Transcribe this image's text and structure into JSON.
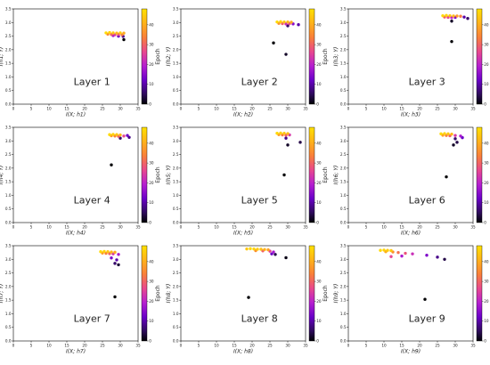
{
  "chart_data": [
    {
      "type": "scatter",
      "annotation": "Layer 1",
      "xlabel": "I(X; h1)",
      "ylabel": "I(h1; Y)",
      "xlim": [
        0,
        35
      ],
      "ylim": [
        0,
        3.5
      ],
      "xticks": [
        "0",
        "5",
        "10",
        "15",
        "20",
        "25",
        "30",
        "35"
      ],
      "yticks": [
        "0.0",
        "0.5",
        "1.0",
        "1.5",
        "2.0",
        "2.5",
        "3.0",
        "3.5"
      ],
      "colorbar": {
        "label": "Epoch",
        "range": [
          0,
          48
        ],
        "ticks": [
          "0",
          "10",
          "20",
          "30",
          "40"
        ]
      },
      "points": [
        {
          "x": 26.0,
          "y": 2.62,
          "epoch": 47
        },
        {
          "x": 27.0,
          "y": 2.63,
          "epoch": 46
        },
        {
          "x": 28.0,
          "y": 2.62,
          "epoch": 44
        },
        {
          "x": 29.0,
          "y": 2.61,
          "epoch": 42
        },
        {
          "x": 30.0,
          "y": 2.62,
          "epoch": 45
        },
        {
          "x": 31.0,
          "y": 2.61,
          "epoch": 40
        },
        {
          "x": 26.5,
          "y": 2.57,
          "epoch": 35
        },
        {
          "x": 27.5,
          "y": 2.56,
          "epoch": 30
        },
        {
          "x": 28.5,
          "y": 2.55,
          "epoch": 25
        },
        {
          "x": 29.5,
          "y": 2.56,
          "epoch": 28
        },
        {
          "x": 30.5,
          "y": 2.55,
          "epoch": 33
        },
        {
          "x": 28.0,
          "y": 2.52,
          "epoch": 18
        },
        {
          "x": 29.5,
          "y": 2.5,
          "epoch": 12
        },
        {
          "x": 30.8,
          "y": 2.49,
          "epoch": 8
        },
        {
          "x": 31.0,
          "y": 2.37,
          "epoch": 0
        }
      ]
    },
    {
      "type": "scatter",
      "annotation": "Layer 2",
      "xlabel": "I(X; h2)",
      "ylabel": "I(h2; Y)",
      "xlim": [
        0,
        35
      ],
      "ylim": [
        0,
        3.5
      ],
      "xticks": [
        "0",
        "5",
        "10",
        "15",
        "20",
        "25",
        "30",
        "35"
      ],
      "yticks": [
        "0.0",
        "0.5",
        "1.0",
        "1.5",
        "2.0",
        "2.5",
        "3.0",
        "3.5"
      ],
      "colorbar": {
        "label": "Epoch",
        "range": [
          0,
          48
        ],
        "ticks": [
          "0",
          "10",
          "20",
          "30",
          "40"
        ]
      },
      "points": [
        {
          "x": 27.0,
          "y": 3.02,
          "epoch": 47
        },
        {
          "x": 28.0,
          "y": 3.03,
          "epoch": 46
        },
        {
          "x": 29.0,
          "y": 3.02,
          "epoch": 44
        },
        {
          "x": 30.0,
          "y": 3.02,
          "epoch": 42
        },
        {
          "x": 31.0,
          "y": 3.01,
          "epoch": 40
        },
        {
          "x": 27.5,
          "y": 2.97,
          "epoch": 36
        },
        {
          "x": 28.5,
          "y": 2.96,
          "epoch": 30
        },
        {
          "x": 29.5,
          "y": 2.95,
          "epoch": 22
        },
        {
          "x": 30.5,
          "y": 2.96,
          "epoch": 27
        },
        {
          "x": 31.5,
          "y": 2.95,
          "epoch": 15
        },
        {
          "x": 33.0,
          "y": 2.92,
          "epoch": 10
        },
        {
          "x": 30.0,
          "y": 2.88,
          "epoch": 6
        },
        {
          "x": 29.5,
          "y": 1.83,
          "epoch": 2
        },
        {
          "x": 26.0,
          "y": 2.25,
          "epoch": 0
        }
      ]
    },
    {
      "type": "scatter",
      "annotation": "Layer 3",
      "xlabel": "I(X; h3)",
      "ylabel": "I(h3; Y)",
      "xlim": [
        0,
        35
      ],
      "ylim": [
        0,
        3.5
      ],
      "xticks": [
        "0",
        "5",
        "10",
        "15",
        "20",
        "25",
        "30",
        "35"
      ],
      "yticks": [
        "0.0",
        "0.5",
        "1.0",
        "1.5",
        "2.0",
        "2.5",
        "3.0",
        "3.5"
      ],
      "colorbar": {
        "label": "Epoch",
        "range": [
          0,
          48
        ],
        "ticks": [
          "0",
          "10",
          "20",
          "30",
          "40"
        ]
      },
      "points": [
        {
          "x": 26.5,
          "y": 3.25,
          "epoch": 47
        },
        {
          "x": 27.5,
          "y": 3.26,
          "epoch": 46
        },
        {
          "x": 28.5,
          "y": 3.25,
          "epoch": 44
        },
        {
          "x": 29.5,
          "y": 3.24,
          "epoch": 42
        },
        {
          "x": 30.5,
          "y": 3.24,
          "epoch": 38
        },
        {
          "x": 31.5,
          "y": 3.23,
          "epoch": 33
        },
        {
          "x": 27.0,
          "y": 3.2,
          "epoch": 30
        },
        {
          "x": 28.0,
          "y": 3.19,
          "epoch": 26
        },
        {
          "x": 29.0,
          "y": 3.18,
          "epoch": 20
        },
        {
          "x": 30.0,
          "y": 3.19,
          "epoch": 14
        },
        {
          "x": 32.5,
          "y": 3.2,
          "epoch": 10
        },
        {
          "x": 33.5,
          "y": 3.15,
          "epoch": 6
        },
        {
          "x": 29.0,
          "y": 3.05,
          "epoch": 2
        },
        {
          "x": 29.0,
          "y": 2.3,
          "epoch": 0
        }
      ]
    },
    {
      "type": "scatter",
      "annotation": "Layer 4",
      "xlabel": "I(X; h4)",
      "ylabel": "I(h4; Y)",
      "xlim": [
        0,
        35
      ],
      "ylim": [
        0,
        3.5
      ],
      "xticks": [
        "0",
        "5",
        "10",
        "15",
        "20",
        "25",
        "30",
        "35"
      ],
      "yticks": [
        "0.0",
        "0.5",
        "1.0",
        "1.5",
        "2.0",
        "2.5",
        "3.0",
        "3.5"
      ],
      "colorbar": {
        "label": "Epoch",
        "range": [
          0,
          48
        ],
        "ticks": [
          "0",
          "10",
          "20",
          "30",
          "40"
        ]
      },
      "points": [
        {
          "x": 27.0,
          "y": 3.23,
          "epoch": 47
        },
        {
          "x": 28.0,
          "y": 3.24,
          "epoch": 46
        },
        {
          "x": 29.0,
          "y": 3.23,
          "epoch": 44
        },
        {
          "x": 30.0,
          "y": 3.22,
          "epoch": 42
        },
        {
          "x": 27.5,
          "y": 3.19,
          "epoch": 38
        },
        {
          "x": 28.5,
          "y": 3.18,
          "epoch": 34
        },
        {
          "x": 29.5,
          "y": 3.17,
          "epoch": 30
        },
        {
          "x": 31.0,
          "y": 3.18,
          "epoch": 26
        },
        {
          "x": 32.0,
          "y": 3.2,
          "epoch": 12
        },
        {
          "x": 30.0,
          "y": 3.1,
          "epoch": 6
        },
        {
          "x": 32.5,
          "y": 3.13,
          "epoch": 8
        },
        {
          "x": 27.5,
          "y": 2.12,
          "epoch": 0
        }
      ]
    },
    {
      "type": "scatter",
      "annotation": "Layer 5",
      "xlabel": "I(X; h5)",
      "ylabel": "I(h5; Y)",
      "xlim": [
        0,
        35
      ],
      "ylim": [
        0,
        3.5
      ],
      "xticks": [
        "0",
        "5",
        "10",
        "15",
        "20",
        "25",
        "30",
        "35"
      ],
      "yticks": [
        "0.0",
        "0.5",
        "1.0",
        "1.5",
        "2.0",
        "2.5",
        "3.0",
        "3.5"
      ],
      "colorbar": {
        "label": "Epoch",
        "range": [
          0,
          48
        ],
        "ticks": [
          "0",
          "10",
          "20",
          "30",
          "40"
        ]
      },
      "points": [
        {
          "x": 27.0,
          "y": 3.28,
          "epoch": 47
        },
        {
          "x": 28.0,
          "y": 3.29,
          "epoch": 46
        },
        {
          "x": 29.0,
          "y": 3.28,
          "epoch": 44
        },
        {
          "x": 30.0,
          "y": 3.27,
          "epoch": 42
        },
        {
          "x": 27.5,
          "y": 3.23,
          "epoch": 38
        },
        {
          "x": 28.5,
          "y": 3.22,
          "epoch": 34
        },
        {
          "x": 29.5,
          "y": 3.21,
          "epoch": 30
        },
        {
          "x": 30.5,
          "y": 3.22,
          "epoch": 24
        },
        {
          "x": 29.5,
          "y": 3.1,
          "epoch": 8
        },
        {
          "x": 33.5,
          "y": 2.95,
          "epoch": 4
        },
        {
          "x": 30.0,
          "y": 2.85,
          "epoch": 2
        },
        {
          "x": 29.0,
          "y": 1.75,
          "epoch": 0
        }
      ]
    },
    {
      "type": "scatter",
      "annotation": "Layer 6",
      "xlabel": "I(X; h6)",
      "ylabel": "I(h6; Y)",
      "xlim": [
        0,
        35
      ],
      "ylim": [
        0,
        3.5
      ],
      "xticks": [
        "0",
        "5",
        "10",
        "15",
        "20",
        "25",
        "30",
        "35"
      ],
      "yticks": [
        "0.0",
        "0.5",
        "1.0",
        "1.5",
        "2.0",
        "2.5",
        "3.0",
        "3.5"
      ],
      "colorbar": {
        "label": "Epoch",
        "range": [
          0,
          48
        ],
        "ticks": [
          "0",
          "10",
          "20",
          "30",
          "40"
        ]
      },
      "points": [
        {
          "x": 26.0,
          "y": 3.26,
          "epoch": 47
        },
        {
          "x": 27.0,
          "y": 3.27,
          "epoch": 46
        },
        {
          "x": 28.0,
          "y": 3.26,
          "epoch": 44
        },
        {
          "x": 29.0,
          "y": 3.25,
          "epoch": 42
        },
        {
          "x": 26.5,
          "y": 3.21,
          "epoch": 38
        },
        {
          "x": 27.5,
          "y": 3.2,
          "epoch": 34
        },
        {
          "x": 28.5,
          "y": 3.19,
          "epoch": 30
        },
        {
          "x": 30.0,
          "y": 3.2,
          "epoch": 24
        },
        {
          "x": 31.5,
          "y": 3.18,
          "epoch": 18
        },
        {
          "x": 32.0,
          "y": 3.12,
          "epoch": 12
        },
        {
          "x": 30.0,
          "y": 3.08,
          "epoch": 6
        },
        {
          "x": 30.5,
          "y": 2.95,
          "epoch": 4
        },
        {
          "x": 29.5,
          "y": 2.85,
          "epoch": 2
        },
        {
          "x": 27.5,
          "y": 1.68,
          "epoch": 0
        }
      ]
    },
    {
      "type": "scatter",
      "annotation": "Layer 7",
      "xlabel": "I(X; h7)",
      "ylabel": "I(h7; Y)",
      "xlim": [
        0,
        35
      ],
      "ylim": [
        0,
        3.5
      ],
      "xticks": [
        "0",
        "5",
        "10",
        "15",
        "20",
        "25",
        "30",
        "35"
      ],
      "yticks": [
        "0.0",
        "0.5",
        "1.0",
        "1.5",
        "2.0",
        "2.5",
        "3.0",
        "3.5"
      ],
      "colorbar": {
        "label": "Epoch",
        "range": [
          0,
          48
        ],
        "ticks": [
          "0",
          "10",
          "20",
          "30",
          "40"
        ]
      },
      "points": [
        {
          "x": 24.5,
          "y": 3.28,
          "epoch": 47
        },
        {
          "x": 25.5,
          "y": 3.29,
          "epoch": 46
        },
        {
          "x": 26.5,
          "y": 3.28,
          "epoch": 44
        },
        {
          "x": 27.5,
          "y": 3.27,
          "epoch": 42
        },
        {
          "x": 28.5,
          "y": 3.26,
          "epoch": 40
        },
        {
          "x": 25.0,
          "y": 3.23,
          "epoch": 38
        },
        {
          "x": 26.0,
          "y": 3.22,
          "epoch": 34
        },
        {
          "x": 27.0,
          "y": 3.21,
          "epoch": 30
        },
        {
          "x": 28.0,
          "y": 3.2,
          "epoch": 24
        },
        {
          "x": 29.5,
          "y": 3.18,
          "epoch": 18
        },
        {
          "x": 27.5,
          "y": 3.05,
          "epoch": 14
        },
        {
          "x": 29.0,
          "y": 2.98,
          "epoch": 10
        },
        {
          "x": 28.5,
          "y": 2.85,
          "epoch": 6
        },
        {
          "x": 29.5,
          "y": 2.8,
          "epoch": 3
        },
        {
          "x": 28.5,
          "y": 1.62,
          "epoch": 0
        }
      ]
    },
    {
      "type": "scatter",
      "annotation": "Layer 8",
      "xlabel": "I(X; h8)",
      "ylabel": "I(h8; Y)",
      "xlim": [
        0,
        35
      ],
      "ylim": [
        0,
        3.5
      ],
      "xticks": [
        "0",
        "5",
        "10",
        "15",
        "20",
        "25",
        "30",
        "35"
      ],
      "yticks": [
        "0.0",
        "0.5",
        "1.0",
        "1.5",
        "2.0",
        "2.5",
        "3.0",
        "3.5"
      ],
      "colorbar": {
        "label": "Epoch",
        "range": [
          0,
          48
        ],
        "ticks": [
          "0",
          "10",
          "20",
          "30",
          "40"
        ]
      },
      "points": [
        {
          "x": 18.5,
          "y": 3.38,
          "epoch": 44
        },
        {
          "x": 19.5,
          "y": 3.39,
          "epoch": 47
        },
        {
          "x": 20.5,
          "y": 3.38,
          "epoch": 46
        },
        {
          "x": 21.5,
          "y": 3.37,
          "epoch": 45
        },
        {
          "x": 22.5,
          "y": 3.37,
          "epoch": 43
        },
        {
          "x": 23.5,
          "y": 3.36,
          "epoch": 41
        },
        {
          "x": 24.5,
          "y": 3.35,
          "epoch": 39
        },
        {
          "x": 21.0,
          "y": 3.32,
          "epoch": 36
        },
        {
          "x": 23.0,
          "y": 3.31,
          "epoch": 30
        },
        {
          "x": 25.0,
          "y": 3.3,
          "epoch": 26
        },
        {
          "x": 26.0,
          "y": 3.27,
          "epoch": 18
        },
        {
          "x": 25.5,
          "y": 3.2,
          "epoch": 12
        },
        {
          "x": 26.5,
          "y": 3.18,
          "epoch": 4
        },
        {
          "x": 29.5,
          "y": 3.06,
          "epoch": 1
        },
        {
          "x": 19.0,
          "y": 1.6,
          "epoch": 0
        }
      ]
    },
    {
      "type": "scatter",
      "annotation": "Layer 9",
      "xlabel": "I(X; h9)",
      "ylabel": "I(h9; Y)",
      "xlim": [
        0,
        35
      ],
      "ylim": [
        0,
        3.5
      ],
      "xticks": [
        "0",
        "5",
        "10",
        "15",
        "20",
        "25",
        "30",
        "35"
      ],
      "yticks": [
        "0.0",
        "0.5",
        "1.0",
        "1.5",
        "2.0",
        "2.5",
        "3.0",
        "3.5"
      ],
      "colorbar": {
        "label": "Epoch",
        "range": [
          0,
          48
        ],
        "ticks": [
          "0",
          "10",
          "20",
          "30",
          "40"
        ]
      },
      "points": [
        {
          "x": 9.0,
          "y": 3.33,
          "epoch": 47
        },
        {
          "x": 10.0,
          "y": 3.34,
          "epoch": 46
        },
        {
          "x": 11.0,
          "y": 3.33,
          "epoch": 45
        },
        {
          "x": 12.0,
          "y": 3.32,
          "epoch": 44
        },
        {
          "x": 10.5,
          "y": 3.28,
          "epoch": 40
        },
        {
          "x": 12.5,
          "y": 3.27,
          "epoch": 36
        },
        {
          "x": 14.0,
          "y": 3.25,
          "epoch": 32
        },
        {
          "x": 16.0,
          "y": 3.22,
          "epoch": 28
        },
        {
          "x": 18.0,
          "y": 3.2,
          "epoch": 22
        },
        {
          "x": 12.0,
          "y": 3.1,
          "epoch": 26
        },
        {
          "x": 15.0,
          "y": 3.12,
          "epoch": 18
        },
        {
          "x": 22.0,
          "y": 3.15,
          "epoch": 14
        },
        {
          "x": 25.0,
          "y": 3.08,
          "epoch": 8
        },
        {
          "x": 27.0,
          "y": 3.0,
          "epoch": 4
        },
        {
          "x": 21.5,
          "y": 1.53,
          "epoch": 0
        }
      ]
    }
  ]
}
